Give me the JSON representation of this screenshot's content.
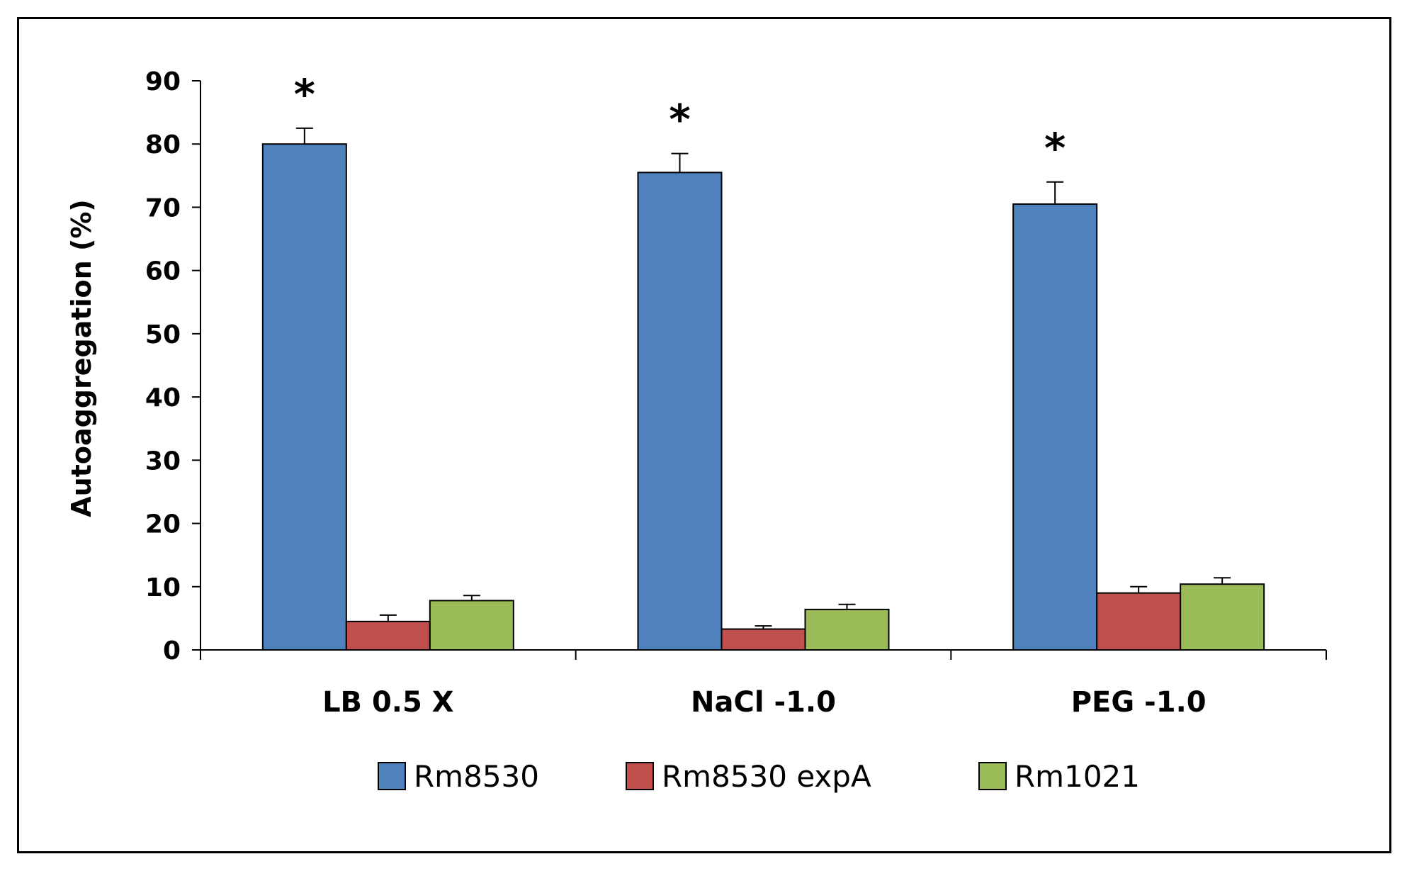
{
  "chart_data": {
    "type": "bar",
    "title": "",
    "xlabel": "",
    "ylabel": "Autoaggregation (%)",
    "ylim": [
      0,
      90
    ],
    "yticks": [
      0,
      10,
      20,
      30,
      40,
      50,
      60,
      70,
      80,
      90
    ],
    "grid": false,
    "legend_position": "bottom",
    "categories": [
      "LB 0.5 X",
      "NaCl -1.0",
      "PEG -1.0"
    ],
    "series": [
      {
        "name": "Rm8530",
        "color": "#4F81BD",
        "values": [
          80,
          75.5,
          70.5
        ],
        "errors": [
          2.5,
          3,
          3.5
        ]
      },
      {
        "name": "Rm8530 expA",
        "color": "#C0504D",
        "values": [
          4.5,
          3.3,
          9
        ],
        "errors": [
          1,
          0.5,
          1
        ]
      },
      {
        "name": "Rm1021",
        "color": "#9BBB59",
        "values": [
          7.8,
          6.4,
          10.4
        ],
        "errors": [
          0.8,
          0.8,
          1
        ]
      }
    ],
    "annotations": [
      {
        "text": "*",
        "category_index": 0,
        "series_index": 0
      },
      {
        "text": "*",
        "category_index": 1,
        "series_index": 0
      },
      {
        "text": "*",
        "category_index": 2,
        "series_index": 0
      }
    ]
  }
}
